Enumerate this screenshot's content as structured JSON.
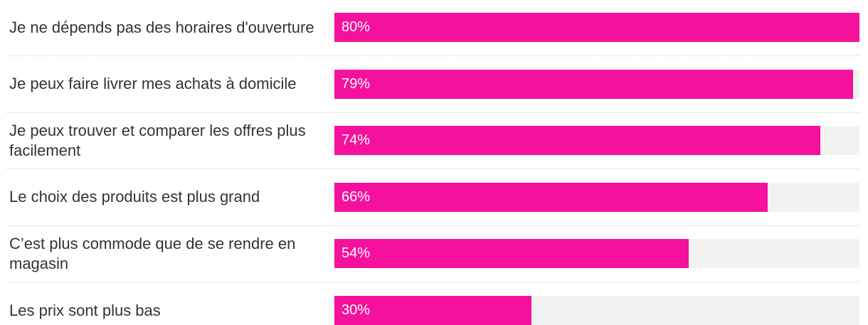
{
  "chart_data": {
    "type": "bar",
    "orientation": "horizontal",
    "categories": [
      "Je ne dépends pas des horaires d'ouverture",
      "Je peux faire livrer mes achats à domicile",
      "Je peux trouver et comparer les offres plus facilement",
      "Le choix des produits est plus grand",
      "C’est plus commode que de se rendre en magasin",
      "Les prix sont plus bas"
    ],
    "series": [
      {
        "values": [
          80,
          79,
          74,
          66,
          54,
          30
        ]
      }
    ],
    "value_labels": [
      "80%",
      "79%",
      "74%",
      "66%",
      "54%",
      "30%"
    ],
    "xlim": [
      0,
      80
    ],
    "grid": false,
    "legend": "none",
    "colors": {
      "bar": "#f5119b",
      "track": "#f2f2f2",
      "label": "#333333",
      "value_label": "#ffffff"
    }
  }
}
